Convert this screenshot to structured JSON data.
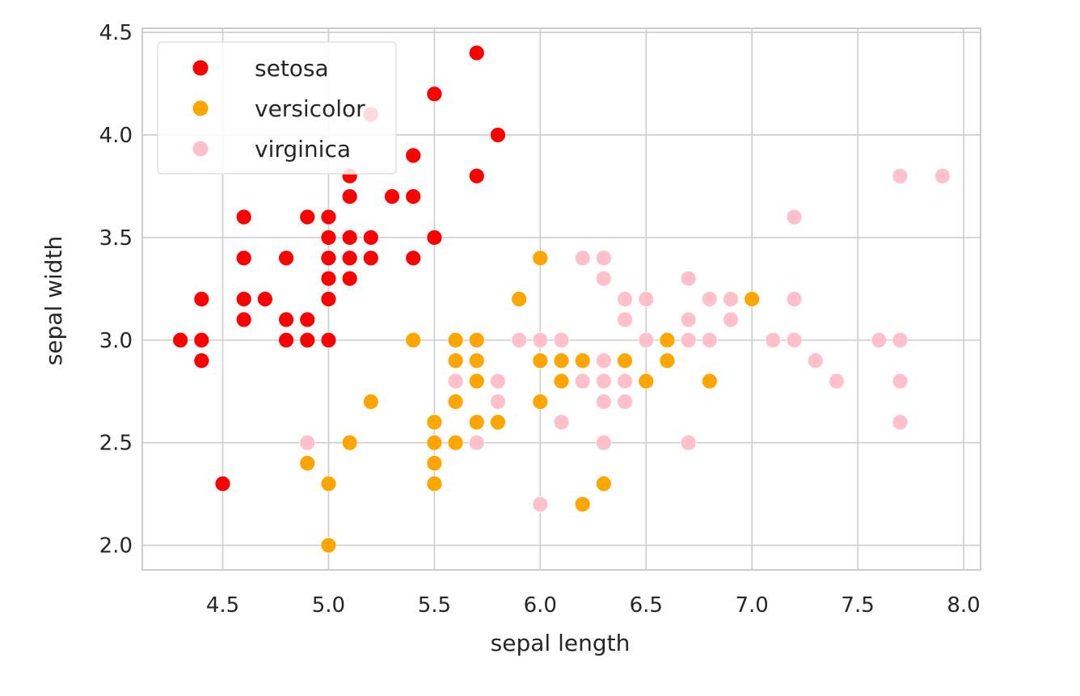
{
  "chart_data": {
    "type": "scatter",
    "title": "",
    "xlabel": "sepal length",
    "ylabel": "sepal width",
    "xlim": [
      4.12,
      8.08
    ],
    "ylim": [
      1.88,
      4.52
    ],
    "xticks": [
      "4.5",
      "5.0",
      "5.5",
      "6.0",
      "6.5",
      "7.0",
      "7.5",
      "8.0"
    ],
    "yticks": [
      "2.0",
      "2.5",
      "3.0",
      "3.5",
      "4.0",
      "4.5"
    ],
    "grid": true,
    "legend_position": "top-left",
    "series": [
      {
        "name": "setosa",
        "color": "#ff0000",
        "points": [
          [
            5.1,
            3.5
          ],
          [
            4.9,
            3.0
          ],
          [
            4.7,
            3.2
          ],
          [
            4.6,
            3.1
          ],
          [
            5.0,
            3.6
          ],
          [
            5.4,
            3.9
          ],
          [
            4.6,
            3.4
          ],
          [
            5.0,
            3.4
          ],
          [
            4.4,
            2.9
          ],
          [
            4.9,
            3.1
          ],
          [
            5.4,
            3.7
          ],
          [
            4.8,
            3.4
          ],
          [
            4.8,
            3.0
          ],
          [
            4.3,
            3.0
          ],
          [
            5.8,
            4.0
          ],
          [
            5.7,
            4.4
          ],
          [
            5.4,
            3.9
          ],
          [
            5.1,
            3.5
          ],
          [
            5.7,
            3.8
          ],
          [
            5.1,
            3.8
          ],
          [
            5.4,
            3.4
          ],
          [
            5.1,
            3.7
          ],
          [
            4.6,
            3.6
          ],
          [
            5.1,
            3.3
          ],
          [
            4.8,
            3.4
          ],
          [
            5.0,
            3.0
          ],
          [
            5.0,
            3.4
          ],
          [
            5.2,
            3.5
          ],
          [
            5.2,
            3.4
          ],
          [
            4.7,
            3.2
          ],
          [
            4.8,
            3.1
          ],
          [
            5.4,
            3.4
          ],
          [
            5.2,
            4.1
          ],
          [
            5.5,
            4.2
          ],
          [
            4.9,
            3.1
          ],
          [
            5.0,
            3.2
          ],
          [
            5.5,
            3.5
          ],
          [
            4.9,
            3.6
          ],
          [
            4.4,
            3.0
          ],
          [
            5.1,
            3.4
          ],
          [
            5.0,
            3.5
          ],
          [
            4.5,
            2.3
          ],
          [
            4.4,
            3.2
          ],
          [
            5.0,
            3.5
          ],
          [
            5.1,
            3.8
          ],
          [
            4.8,
            3.0
          ],
          [
            5.1,
            3.8
          ],
          [
            4.6,
            3.2
          ],
          [
            5.3,
            3.7
          ],
          [
            5.0,
            3.3
          ]
        ]
      },
      {
        "name": "versicolor",
        "color": "#ffa500",
        "points": [
          [
            7.0,
            3.2
          ],
          [
            6.4,
            3.2
          ],
          [
            6.9,
            3.1
          ],
          [
            5.5,
            2.3
          ],
          [
            6.5,
            2.8
          ],
          [
            5.7,
            2.8
          ],
          [
            6.3,
            3.3
          ],
          [
            4.9,
            2.4
          ],
          [
            6.6,
            2.9
          ],
          [
            5.2,
            2.7
          ],
          [
            5.0,
            2.0
          ],
          [
            5.9,
            3.0
          ],
          [
            6.0,
            2.2
          ],
          [
            6.1,
            2.9
          ],
          [
            5.6,
            2.9
          ],
          [
            6.7,
            3.1
          ],
          [
            5.6,
            3.0
          ],
          [
            5.8,
            2.7
          ],
          [
            6.2,
            2.2
          ],
          [
            5.6,
            2.5
          ],
          [
            5.9,
            3.2
          ],
          [
            6.1,
            2.8
          ],
          [
            6.3,
            2.5
          ],
          [
            6.1,
            2.8
          ],
          [
            6.4,
            2.9
          ],
          [
            6.6,
            3.0
          ],
          [
            6.8,
            2.8
          ],
          [
            6.7,
            3.0
          ],
          [
            6.0,
            2.9
          ],
          [
            5.7,
            2.6
          ],
          [
            5.5,
            2.4
          ],
          [
            5.5,
            2.4
          ],
          [
            5.8,
            2.7
          ],
          [
            6.0,
            2.7
          ],
          [
            5.4,
            3.0
          ],
          [
            6.0,
            3.4
          ],
          [
            6.7,
            3.1
          ],
          [
            6.3,
            2.3
          ],
          [
            5.6,
            3.0
          ],
          [
            5.5,
            2.5
          ],
          [
            5.5,
            2.6
          ],
          [
            6.1,
            3.0
          ],
          [
            5.8,
            2.6
          ],
          [
            5.0,
            2.3
          ],
          [
            5.6,
            2.7
          ],
          [
            5.7,
            3.0
          ],
          [
            5.7,
            2.9
          ],
          [
            6.2,
            2.9
          ],
          [
            5.1,
            2.5
          ],
          [
            5.7,
            2.8
          ]
        ]
      },
      {
        "name": "virginica",
        "color": "#ffc0cb",
        "points": [
          [
            6.3,
            3.3
          ],
          [
            5.8,
            2.7
          ],
          [
            7.1,
            3.0
          ],
          [
            6.3,
            2.9
          ],
          [
            6.5,
            3.0
          ],
          [
            7.6,
            3.0
          ],
          [
            4.9,
            2.5
          ],
          [
            7.3,
            2.9
          ],
          [
            6.7,
            2.5
          ],
          [
            7.2,
            3.6
          ],
          [
            6.5,
            3.2
          ],
          [
            6.4,
            2.7
          ],
          [
            6.8,
            3.0
          ],
          [
            5.7,
            2.5
          ],
          [
            5.8,
            2.8
          ],
          [
            6.4,
            3.2
          ],
          [
            6.5,
            3.0
          ],
          [
            7.7,
            3.8
          ],
          [
            7.7,
            2.6
          ],
          [
            6.0,
            2.2
          ],
          [
            6.9,
            3.2
          ],
          [
            5.6,
            2.8
          ],
          [
            7.7,
            2.8
          ],
          [
            6.3,
            2.7
          ],
          [
            6.7,
            3.3
          ],
          [
            7.2,
            3.2
          ],
          [
            6.2,
            2.8
          ],
          [
            6.1,
            3.0
          ],
          [
            6.4,
            2.8
          ],
          [
            7.2,
            3.0
          ],
          [
            7.4,
            2.8
          ],
          [
            7.9,
            3.8
          ],
          [
            6.4,
            2.8
          ],
          [
            6.3,
            2.8
          ],
          [
            6.1,
            2.6
          ],
          [
            7.7,
            3.0
          ],
          [
            6.3,
            3.4
          ],
          [
            6.4,
            3.1
          ],
          [
            6.0,
            3.0
          ],
          [
            6.9,
            3.1
          ],
          [
            6.7,
            3.1
          ],
          [
            6.9,
            3.1
          ],
          [
            5.8,
            2.7
          ],
          [
            6.8,
            3.2
          ],
          [
            6.7,
            3.3
          ],
          [
            6.7,
            3.0
          ],
          [
            6.3,
            2.5
          ],
          [
            6.5,
            3.0
          ],
          [
            6.2,
            3.4
          ],
          [
            5.9,
            3.0
          ]
        ]
      }
    ]
  }
}
